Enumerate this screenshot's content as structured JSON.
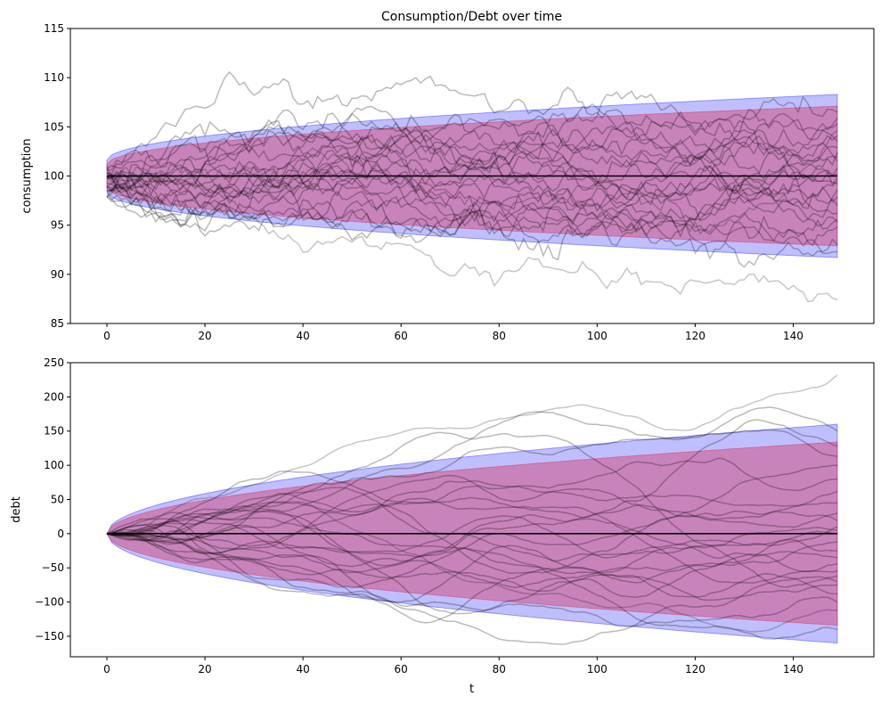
{
  "chart_data": [
    {
      "type": "line",
      "title": "Consumption/Debt over time",
      "xlabel": "",
      "ylabel": "consumption",
      "xlim": [
        -7.45,
        156.45
      ],
      "ylim": [
        85,
        115
      ],
      "xticks": [
        0,
        20,
        40,
        60,
        80,
        100,
        120,
        140
      ],
      "yticks": [
        85,
        90,
        95,
        100,
        105,
        110,
        115
      ],
      "mean": 100,
      "bands": [
        {
          "name": "outer",
          "color": "#0000ff",
          "alpha": 0.25,
          "start_halfwidth": 1.6,
          "end_halfwidth": 8.3
        },
        {
          "name": "inner",
          "color": "#dc143c",
          "alpha": 0.35,
          "start_halfwidth": 1.2,
          "end_halfwidth": 7.1
        }
      ],
      "paths": {
        "count": 25,
        "color": "#000000",
        "alpha": 0.27,
        "start_range": [
          97.6,
          101.2
        ],
        "end_values": [
          87.4,
          92.3,
          93.0,
          94.8,
          95.3,
          96.2,
          97.0,
          97.9,
          98.6,
          99.2,
          99.8,
          100.2,
          100.8,
          101.5,
          101.9,
          102.4,
          102.9,
          103.5,
          104.1,
          104.6,
          105.3,
          105.9,
          106.5,
          95.6,
          99.5
        ],
        "highlighted_end_values": [
          87.4,
          104.6
        ]
      }
    },
    {
      "type": "line",
      "title": "",
      "xlabel": "t",
      "ylabel": "debt",
      "xlim": [
        -7.45,
        156.45
      ],
      "ylim": [
        -180,
        250
      ],
      "xticks": [
        0,
        20,
        40,
        60,
        80,
        100,
        120,
        140
      ],
      "yticks": [
        -150,
        -100,
        -50,
        0,
        50,
        100,
        150,
        200,
        250
      ],
      "ytick_labels": [
        "−150",
        "−100",
        "−50",
        "0",
        "50",
        "100",
        "150",
        "200",
        "250"
      ],
      "mean": 0,
      "bands": [
        {
          "name": "outer",
          "color": "#0000ff",
          "alpha": 0.25,
          "end_halfwidth": 160
        },
        {
          "name": "inner",
          "color": "#dc143c",
          "alpha": 0.35,
          "end_halfwidth": 134
        }
      ],
      "paths": {
        "count": 25,
        "color": "#000000",
        "alpha": 0.27,
        "start_value": 0,
        "end_values": [
          232,
          150,
          128,
          113,
          100,
          80,
          62,
          45,
          30,
          19,
          10,
          0,
          -12,
          -25,
          -35,
          -44,
          -55,
          -62,
          -75,
          -88,
          -100,
          -112,
          -140,
          5,
          -70
        ],
        "highlighted_end_values": [
          232,
          -112
        ]
      }
    }
  ]
}
